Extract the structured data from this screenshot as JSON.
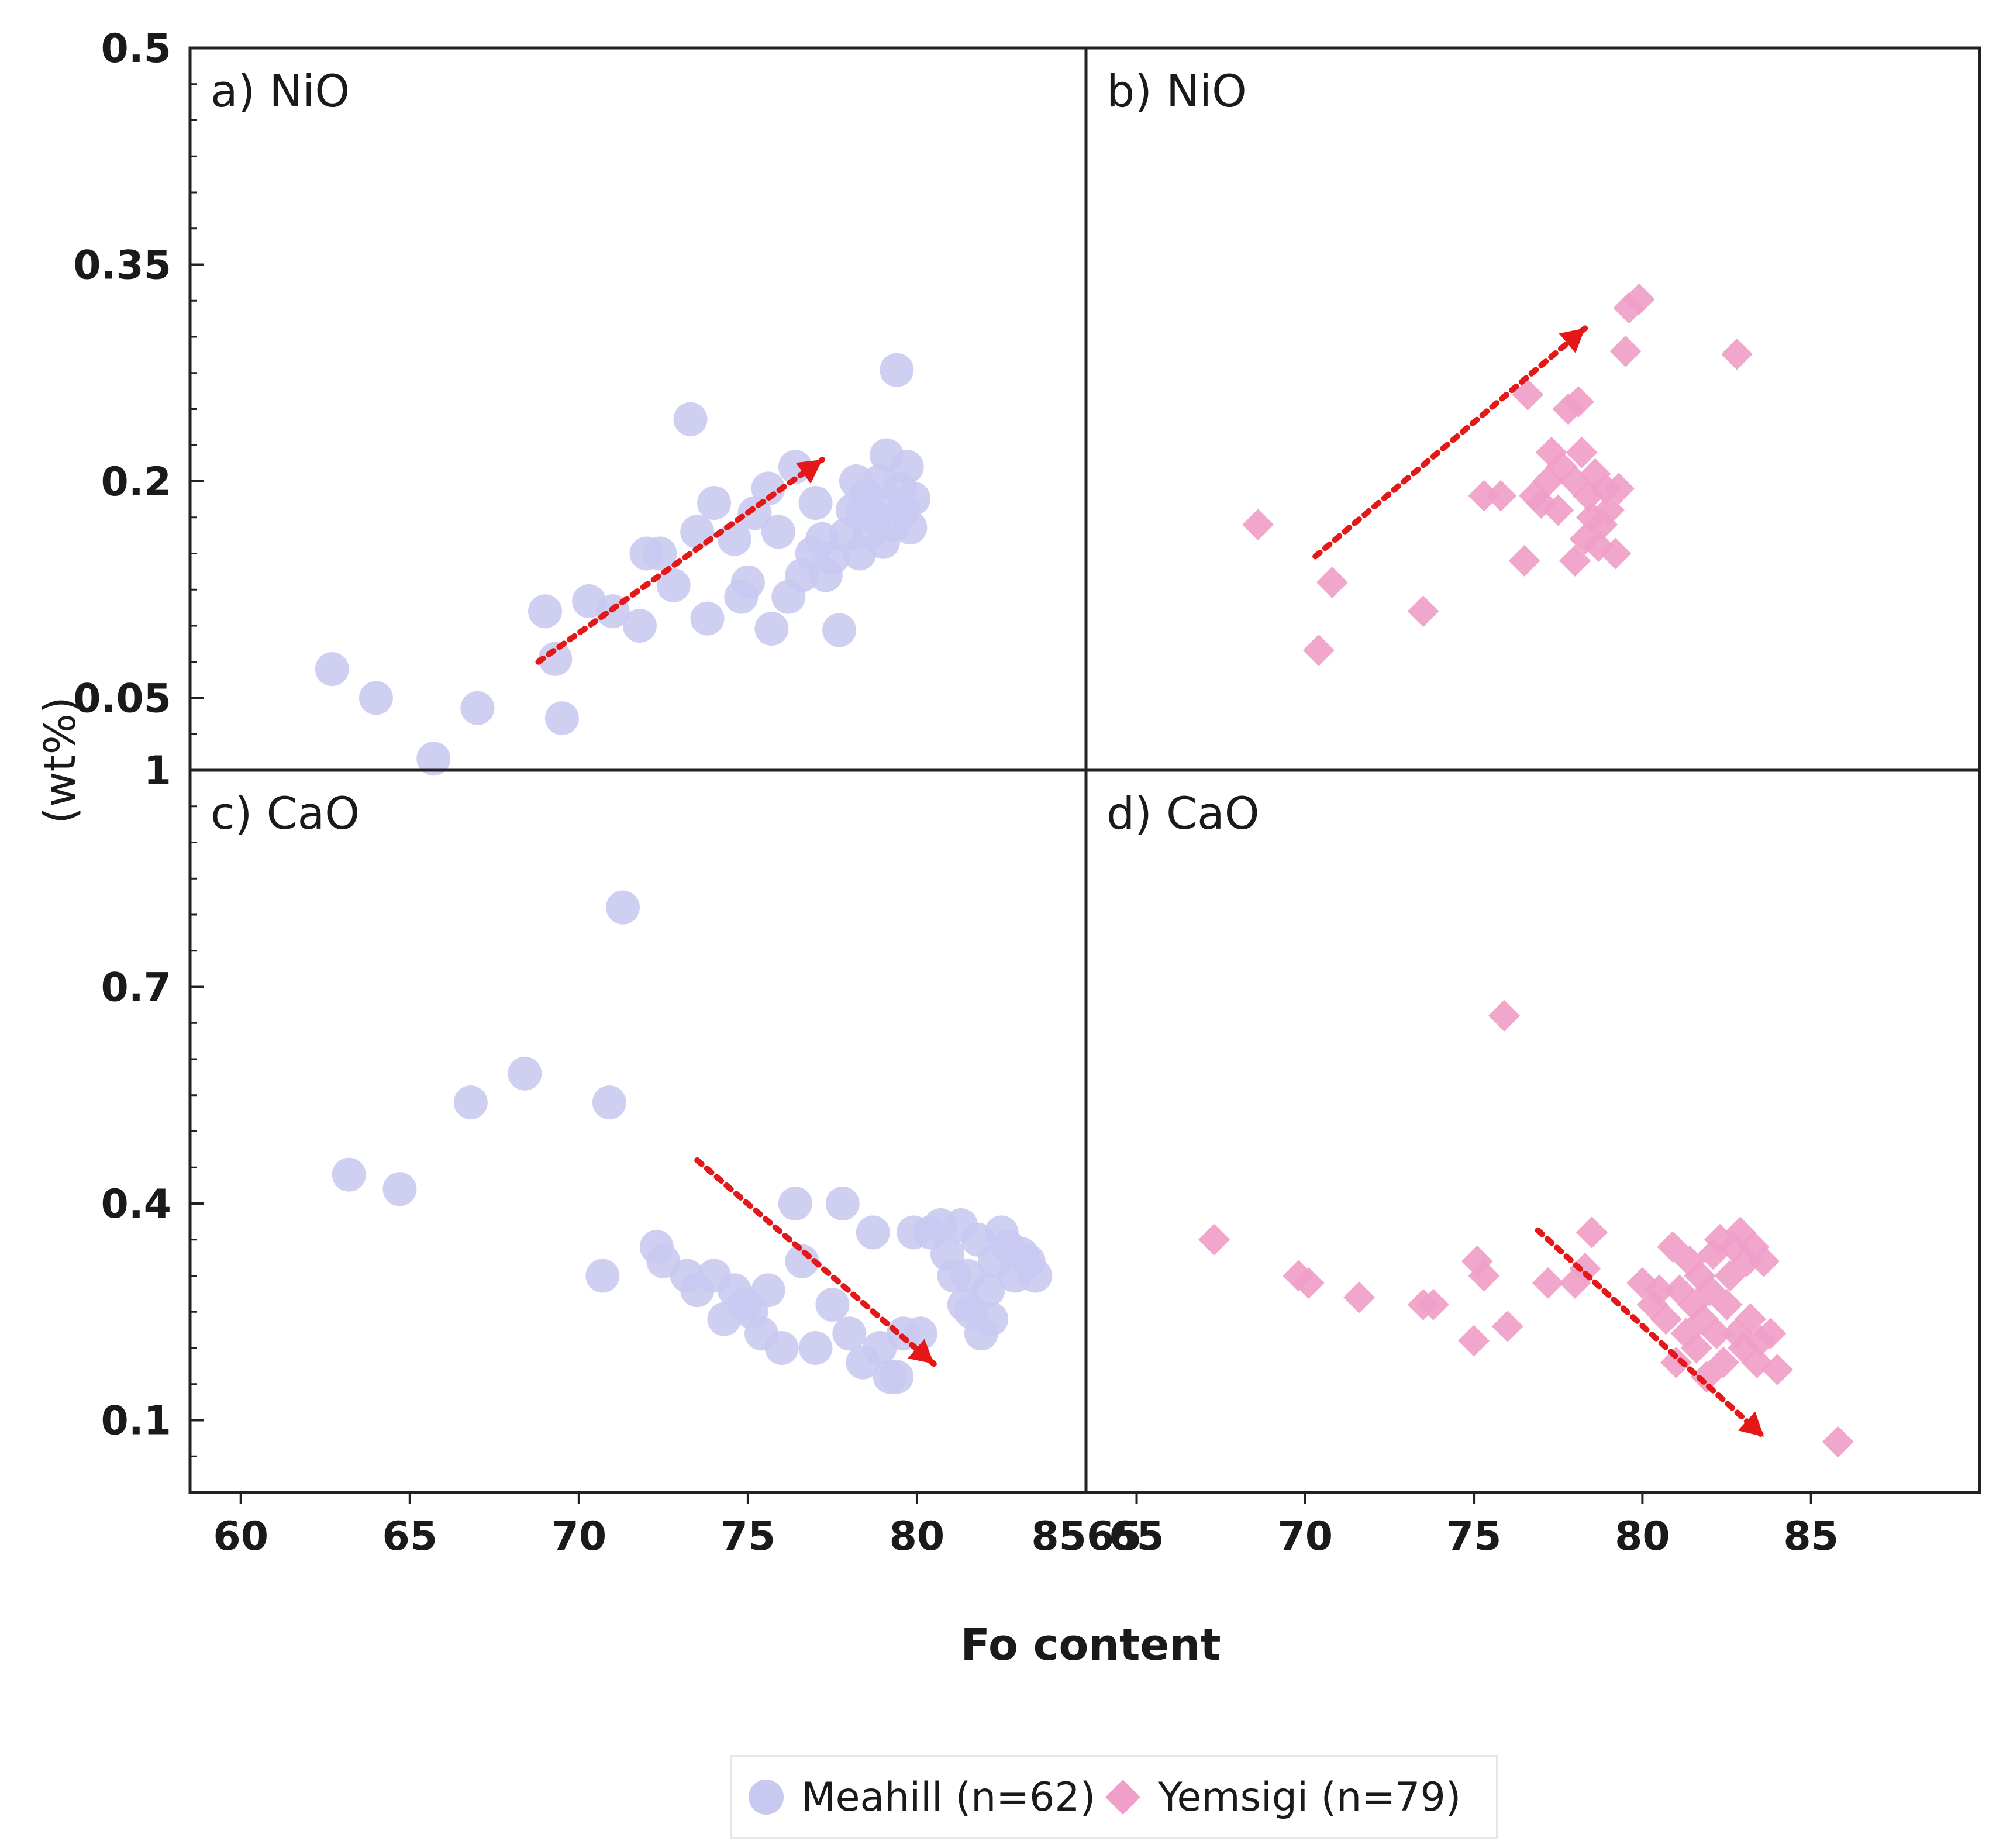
{
  "chart_data": {
    "type": "scatter",
    "xlabel": "Fo content",
    "ylabel": "(wt%)",
    "legend": {
      "position": "bottom-center",
      "entries": [
        {
          "key": "meahill",
          "label": "Meahill (n=62)",
          "marker": "circle"
        },
        {
          "key": "yemsigi",
          "label": "Yemsigi (n=79)",
          "marker": "diamond"
        }
      ]
    },
    "colors": {
      "meahill": "#c8c8f0",
      "yemsigi": "#f0a0c8",
      "trend": "#e41818",
      "axis": "#222222"
    },
    "x_ticks_left": [
      "60",
      "65",
      "70",
      "75",
      "80"
    ],
    "x_ticks_right": [
      "65",
      "70",
      "75",
      "80",
      "85"
    ],
    "x_tick_shared": "8565",
    "y_ticks_top": [
      "0.5",
      "0.35",
      "0.2",
      "0.05"
    ],
    "y_ticks_bottom": [
      "1",
      "0.7",
      "0.4",
      "0.1"
    ],
    "panels": [
      {
        "id": "a",
        "label": "a) NiO",
        "series": "meahill",
        "xlim": [
          58.5,
          85
        ],
        "ylim": [
          0,
          0.5
        ],
        "trend": {
          "from": [
            68.8,
            0.075
          ],
          "to": [
            77.2,
            0.215
          ]
        },
        "points": [
          [
            62.7,
            0.07
          ],
          [
            64.0,
            0.05
          ],
          [
            65.7,
            0.008
          ],
          [
            67.0,
            0.043
          ],
          [
            69.0,
            0.11
          ],
          [
            69.3,
            0.077
          ],
          [
            69.5,
            0.036
          ],
          [
            70.3,
            0.117
          ],
          [
            71.0,
            0.11
          ],
          [
            71.8,
            0.1
          ],
          [
            72.0,
            0.15
          ],
          [
            72.4,
            0.15
          ],
          [
            72.8,
            0.128
          ],
          [
            73.3,
            0.243
          ],
          [
            73.5,
            0.165
          ],
          [
            73.8,
            0.105
          ],
          [
            74.0,
            0.185
          ],
          [
            74.6,
            0.16
          ],
          [
            74.8,
            0.12
          ],
          [
            75.0,
            0.13
          ],
          [
            75.2,
            0.178
          ],
          [
            75.6,
            0.195
          ],
          [
            75.7,
            0.098
          ],
          [
            75.9,
            0.165
          ],
          [
            76.2,
            0.12
          ],
          [
            76.4,
            0.21
          ],
          [
            76.6,
            0.135
          ],
          [
            76.9,
            0.15
          ],
          [
            77.0,
            0.185
          ],
          [
            77.2,
            0.16
          ],
          [
            77.3,
            0.135
          ],
          [
            77.5,
            0.147
          ],
          [
            77.7,
            0.097
          ],
          [
            77.9,
            0.163
          ],
          [
            78.1,
            0.18
          ],
          [
            78.2,
            0.2
          ],
          [
            78.3,
            0.15
          ],
          [
            78.5,
            0.19
          ],
          [
            78.6,
            0.165
          ],
          [
            78.8,
            0.175
          ],
          [
            78.9,
            0.2
          ],
          [
            79.0,
            0.158
          ],
          [
            79.1,
            0.218
          ],
          [
            79.2,
            0.185
          ],
          [
            79.3,
            0.17
          ],
          [
            79.4,
            0.277
          ],
          [
            79.5,
            0.195
          ],
          [
            79.6,
            0.18
          ],
          [
            79.8,
            0.168
          ],
          [
            79.9,
            0.188
          ],
          [
            79.7,
            0.21
          ],
          [
            78.4,
            0.18
          ]
        ]
      },
      {
        "id": "b",
        "label": "b) NiO",
        "series": "yemsigi",
        "xlim": [
          63.5,
          90
        ],
        "ylim": [
          0,
          0.5
        ],
        "trend": {
          "from": [
            70.3,
            0.148
          ],
          "to": [
            78.3,
            0.306
          ]
        },
        "points": [
          [
            68.6,
            0.17
          ],
          [
            70.4,
            0.083
          ],
          [
            70.8,
            0.13
          ],
          [
            73.5,
            0.11
          ],
          [
            75.3,
            0.19
          ],
          [
            75.8,
            0.19
          ],
          [
            76.5,
            0.145
          ],
          [
            76.6,
            0.26
          ],
          [
            76.8,
            0.19
          ],
          [
            77.0,
            0.185
          ],
          [
            77.2,
            0.2
          ],
          [
            77.3,
            0.22
          ],
          [
            77.5,
            0.18
          ],
          [
            77.6,
            0.21
          ],
          [
            77.8,
            0.25
          ],
          [
            78.0,
            0.2
          ],
          [
            78.0,
            0.145
          ],
          [
            78.1,
            0.255
          ],
          [
            78.2,
            0.22
          ],
          [
            78.3,
            0.16
          ],
          [
            78.4,
            0.19
          ],
          [
            78.5,
            0.175
          ],
          [
            78.6,
            0.205
          ],
          [
            78.7,
            0.155
          ],
          [
            78.8,
            0.17
          ],
          [
            78.9,
            0.195
          ],
          [
            79.0,
            0.18
          ],
          [
            79.2,
            0.15
          ],
          [
            79.3,
            0.195
          ],
          [
            79.5,
            0.29
          ],
          [
            79.6,
            0.32
          ],
          [
            79.9,
            0.326
          ],
          [
            82.8,
            0.288
          ]
        ]
      },
      {
        "id": "c",
        "label": "c) CaO",
        "series": "meahill",
        "xlim": [
          58.5,
          85
        ],
        "ylim": [
          0,
          1.0
        ],
        "trend": {
          "from": [
            73.5,
            0.46
          ],
          "to": [
            80.5,
            0.178
          ]
        },
        "points": [
          [
            63.2,
            0.44
          ],
          [
            64.7,
            0.42
          ],
          [
            66.8,
            0.54
          ],
          [
            68.4,
            0.58
          ],
          [
            70.7,
            0.3
          ],
          [
            70.9,
            0.54
          ],
          [
            71.3,
            0.81
          ],
          [
            72.3,
            0.34
          ],
          [
            72.5,
            0.32
          ],
          [
            73.2,
            0.3
          ],
          [
            73.5,
            0.28
          ],
          [
            74.0,
            0.3
          ],
          [
            74.3,
            0.24
          ],
          [
            74.6,
            0.28
          ],
          [
            74.9,
            0.26
          ],
          [
            75.1,
            0.25
          ],
          [
            75.4,
            0.22
          ],
          [
            75.6,
            0.28
          ],
          [
            76.0,
            0.2
          ],
          [
            76.4,
            0.4
          ],
          [
            76.6,
            0.32
          ],
          [
            77.0,
            0.2
          ],
          [
            77.5,
            0.26
          ],
          [
            77.8,
            0.4
          ],
          [
            78.0,
            0.22
          ],
          [
            78.4,
            0.18
          ],
          [
            78.7,
            0.36
          ],
          [
            78.9,
            0.2
          ],
          [
            79.2,
            0.16
          ],
          [
            79.4,
            0.16
          ],
          [
            79.6,
            0.22
          ],
          [
            79.9,
            0.36
          ],
          [
            80.1,
            0.22
          ],
          [
            80.4,
            0.36
          ],
          [
            80.7,
            0.37
          ],
          [
            80.9,
            0.33
          ],
          [
            81.1,
            0.3
          ],
          [
            81.3,
            0.37
          ],
          [
            81.5,
            0.3
          ],
          [
            81.6,
            0.25
          ],
          [
            81.8,
            0.35
          ],
          [
            81.9,
            0.22
          ],
          [
            82.1,
            0.28
          ],
          [
            82.3,
            0.32
          ],
          [
            82.5,
            0.36
          ],
          [
            82.7,
            0.34
          ],
          [
            82.9,
            0.3
          ],
          [
            83.1,
            0.33
          ],
          [
            83.3,
            0.32
          ],
          [
            83.5,
            0.3
          ],
          [
            82.2,
            0.24
          ],
          [
            81.4,
            0.26
          ]
        ]
      },
      {
        "id": "d",
        "label": "d) CaO",
        "series": "yemsigi",
        "xlim": [
          63.5,
          90
        ],
        "ylim": [
          0,
          1.0
        ],
        "trend": {
          "from": [
            76.9,
            0.363
          ],
          "to": [
            83.6,
            0.077
          ]
        },
        "points": [
          [
            67.3,
            0.35
          ],
          [
            69.8,
            0.3
          ],
          [
            70.1,
            0.29
          ],
          [
            71.6,
            0.27
          ],
          [
            73.5,
            0.26
          ],
          [
            73.8,
            0.26
          ],
          [
            75.0,
            0.21
          ],
          [
            75.1,
            0.32
          ],
          [
            75.3,
            0.3
          ],
          [
            75.9,
            0.66
          ],
          [
            76.0,
            0.23
          ],
          [
            77.2,
            0.29
          ],
          [
            78.0,
            0.29
          ],
          [
            78.3,
            0.31
          ],
          [
            78.5,
            0.36
          ],
          [
            80.0,
            0.29
          ],
          [
            80.3,
            0.26
          ],
          [
            80.5,
            0.28
          ],
          [
            80.7,
            0.24
          ],
          [
            80.9,
            0.34
          ],
          [
            81.0,
            0.18
          ],
          [
            81.1,
            0.28
          ],
          [
            81.3,
            0.22
          ],
          [
            81.4,
            0.32
          ],
          [
            81.5,
            0.26
          ],
          [
            81.6,
            0.2
          ],
          [
            81.7,
            0.3
          ],
          [
            81.8,
            0.24
          ],
          [
            81.9,
            0.16
          ],
          [
            82.0,
            0.28
          ],
          [
            82.1,
            0.33
          ],
          [
            82.2,
            0.22
          ],
          [
            82.3,
            0.35
          ],
          [
            82.4,
            0.18
          ],
          [
            82.5,
            0.26
          ],
          [
            82.6,
            0.3
          ],
          [
            82.7,
            0.34
          ],
          [
            82.8,
            0.22
          ],
          [
            82.9,
            0.36
          ],
          [
            83.0,
            0.2
          ],
          [
            83.1,
            0.32
          ],
          [
            83.2,
            0.24
          ],
          [
            83.3,
            0.34
          ],
          [
            83.4,
            0.18
          ],
          [
            83.5,
            0.21
          ],
          [
            83.6,
            0.32
          ],
          [
            83.8,
            0.22
          ],
          [
            84.0,
            0.17
          ],
          [
            85.8,
            0.07
          ]
        ]
      }
    ]
  }
}
